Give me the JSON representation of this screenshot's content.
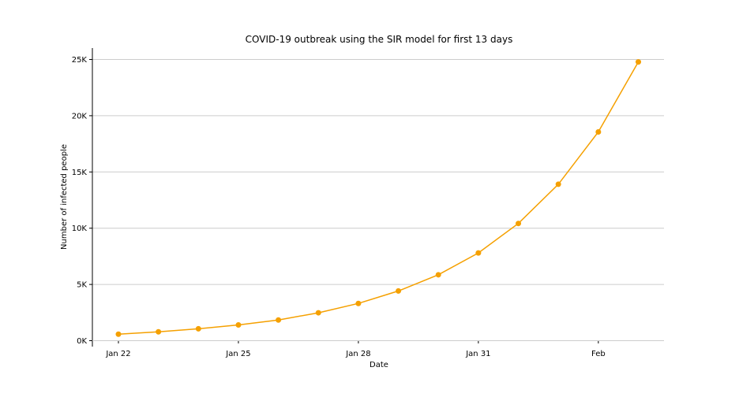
{
  "chart_data": {
    "type": "line",
    "title": "COVID-19 outbreak using the SIR model for first 13 days",
    "xlabel": "Date",
    "ylabel": "Number of infected people",
    "x": [
      "2020-01-22",
      "2020-01-23",
      "2020-01-24",
      "2020-01-25",
      "2020-01-26",
      "2020-01-27",
      "2020-01-28",
      "2020-01-29",
      "2020-01-30",
      "2020-01-31",
      "2020-02-01",
      "2020-02-02",
      "2020-02-03",
      "2020-02-04"
    ],
    "series": [
      {
        "values": [
          580,
          790,
          1060,
          1400,
          1840,
          2480,
          3310,
          4420,
          5860,
          7800,
          10420,
          13910,
          18560,
          24780
        ]
      }
    ],
    "xticks": [
      {
        "date": "2020-01-22",
        "label": "Jan 22"
      },
      {
        "date": "2020-01-25",
        "label": "Jan 25"
      },
      {
        "date": "2020-01-28",
        "label": "Jan 28"
      },
      {
        "date": "2020-01-31",
        "label": "Jan 31"
      },
      {
        "date": "2020-02-03",
        "label": "Feb"
      }
    ],
    "yticks": [
      {
        "value": 0,
        "label": "0K"
      },
      {
        "value": 5000,
        "label": "5K"
      },
      {
        "value": 10000,
        "label": "10K"
      },
      {
        "value": 15000,
        "label": "15K"
      },
      {
        "value": 20000,
        "label": "20K"
      },
      {
        "value": 25000,
        "label": "25K"
      }
    ],
    "xlim": [
      "2020-01-21",
      "2020-02-05"
    ],
    "ylim": [
      0,
      26000
    ],
    "grid": "horizontal",
    "legend": "none",
    "colors": {
      "line": "#f5a000",
      "grid": "#cccccc",
      "axis": "#000000"
    }
  }
}
